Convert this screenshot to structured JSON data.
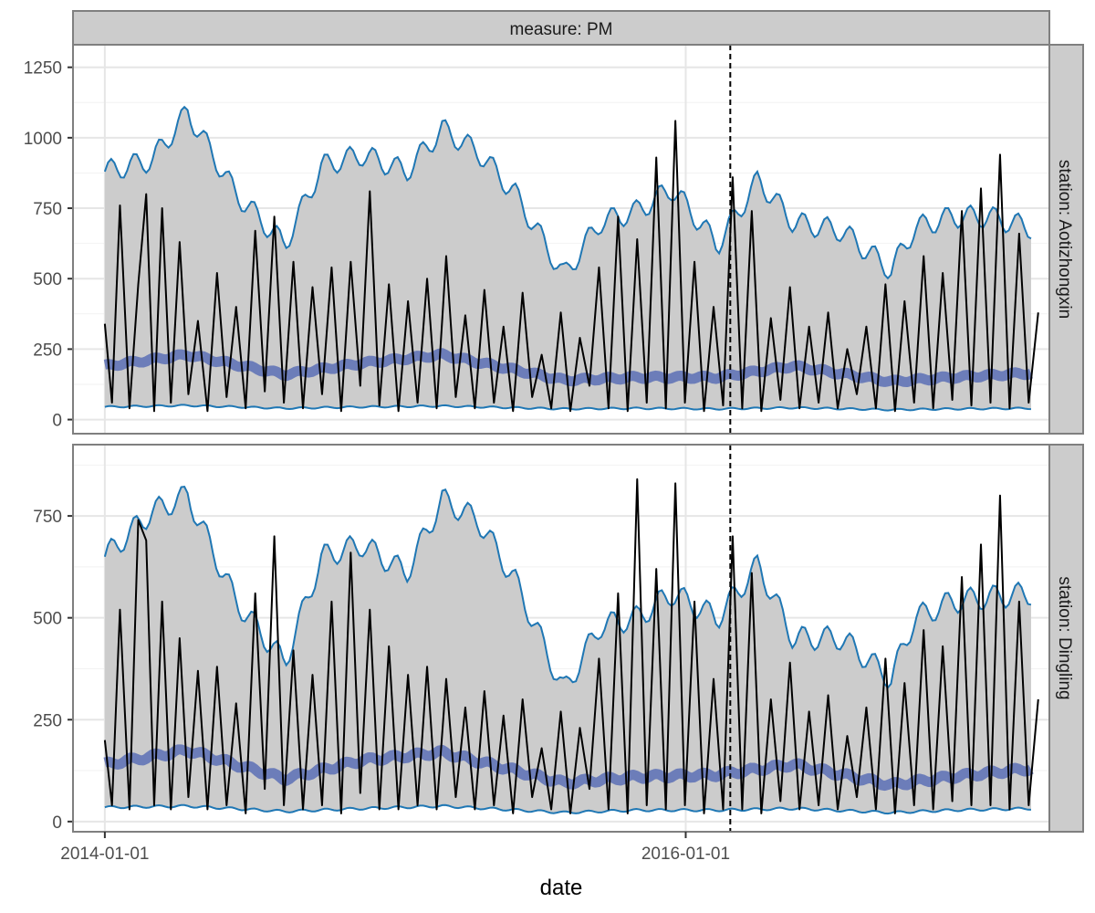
{
  "chart_data": {
    "type": "line",
    "xlabel": "date",
    "column_strip": "measure: PM",
    "x_ticks": [
      "2014-01-01",
      "2016-01-01"
    ],
    "xlim": [
      "2013-11-22",
      "2017-04-02"
    ],
    "changepoint_date": "2016-02-26",
    "colors": {
      "observed": "#000000",
      "bound": "#1f77b4",
      "median": "#5b6fb5",
      "band": "#cccccc",
      "strip": "#cccccc",
      "frame": "#7f7f7f",
      "grid": "#e6e6e6"
    },
    "panels": [
      {
        "strip": "station: Aotizhongxin",
        "ylim": [
          -50,
          1330
        ],
        "y_ticks": [
          0,
          250,
          500,
          750,
          1000,
          1250
        ],
        "series": [
          {
            "kind": "upper",
            "x": [
              "2014-01-01",
              "2014-03-01",
              "2014-04-15",
              "2014-06-15",
              "2014-08-15",
              "2014-10-01",
              "2014-11-20",
              "2015-01-15",
              "2015-03-01",
              "2015-04-15",
              "2015-06-01",
              "2015-08-01",
              "2015-09-15",
              "2015-11-01",
              "2015-12-15",
              "2016-02-10",
              "2016-04-01",
              "2016-05-15",
              "2016-07-15",
              "2016-09-15",
              "2016-10-15",
              "2016-12-01",
              "2017-01-15",
              "2017-03-10"
            ],
            "values": [
              880,
              920,
              1090,
              800,
              620,
              900,
              940,
              880,
              1030,
              950,
              800,
              510,
              700,
              740,
              820,
              620,
              850,
              700,
              670,
              530,
              680,
              720,
              720,
              680
            ]
          },
          {
            "kind": "lower",
            "x": [
              "2014-01-01",
              "2014-04-15",
              "2014-08-15",
              "2014-11-20",
              "2015-03-01",
              "2015-08-01",
              "2015-11-01",
              "2016-02-10",
              "2016-05-15",
              "2016-09-15",
              "2016-12-01",
              "2017-03-10"
            ],
            "values": [
              45,
              50,
              40,
              45,
              48,
              38,
              40,
              38,
              42,
              35,
              38,
              40
            ]
          },
          {
            "kind": "median",
            "x": [
              "2014-01-01",
              "2014-04-15",
              "2014-08-15",
              "2014-11-20",
              "2015-03-01",
              "2015-08-01",
              "2015-11-01",
              "2016-02-10",
              "2016-05-15",
              "2016-09-15",
              "2016-12-01",
              "2017-03-10"
            ],
            "values": [
              190,
              230,
              160,
              200,
              230,
              140,
              150,
              150,
              190,
              135,
              150,
              165
            ]
          },
          {
            "kind": "observed",
            "x": [
              "2014-01-01",
              "2014-01-10",
              "2014-01-20",
              "2014-02-01",
              "2014-02-12",
              "2014-02-22",
              "2014-03-04",
              "2014-03-14",
              "2014-03-25",
              "2014-04-05",
              "2014-04-16",
              "2014-04-28",
              "2014-05-10",
              "2014-05-22",
              "2014-06-03",
              "2014-06-15",
              "2014-06-27",
              "2014-07-09",
              "2014-07-21",
              "2014-08-02",
              "2014-08-14",
              "2014-08-26",
              "2014-09-07",
              "2014-09-19",
              "2014-10-01",
              "2014-10-13",
              "2014-10-25",
              "2014-11-06",
              "2014-11-18",
              "2014-11-30",
              "2014-12-12",
              "2014-12-24",
              "2015-01-05",
              "2015-01-17",
              "2015-01-29",
              "2015-02-10",
              "2015-02-22",
              "2015-03-06",
              "2015-03-18",
              "2015-03-30",
              "2015-04-11",
              "2015-04-23",
              "2015-05-05",
              "2015-05-17",
              "2015-05-29",
              "2015-06-10",
              "2015-06-22",
              "2015-07-04",
              "2015-07-16",
              "2015-07-28",
              "2015-08-09",
              "2015-08-21",
              "2015-09-02",
              "2015-09-14",
              "2015-09-26",
              "2015-10-08",
              "2015-10-20",
              "2015-11-01",
              "2015-11-13",
              "2015-11-25",
              "2015-12-07",
              "2015-12-19",
              "2015-12-31",
              "2016-01-12",
              "2016-01-24",
              "2016-02-05",
              "2016-02-17",
              "2016-02-29",
              "2016-03-12",
              "2016-03-24",
              "2016-04-05",
              "2016-04-17",
              "2016-04-29",
              "2016-05-11",
              "2016-05-23",
              "2016-06-04",
              "2016-06-16",
              "2016-06-28",
              "2016-07-10",
              "2016-07-22",
              "2016-08-03",
              "2016-08-15",
              "2016-08-27",
              "2016-09-08",
              "2016-09-20",
              "2016-10-02",
              "2016-10-14",
              "2016-10-26",
              "2016-11-07",
              "2016-11-19",
              "2016-12-01",
              "2016-12-13",
              "2016-12-25",
              "2017-01-06",
              "2017-01-18",
              "2017-01-30",
              "2017-02-11",
              "2017-02-23",
              "2017-03-07",
              "2017-03-19"
            ],
            "values": [
              340,
              60,
              760,
              40,
              480,
              800,
              30,
              750,
              60,
              630,
              90,
              350,
              30,
              520,
              80,
              400,
              40,
              670,
              100,
              720,
              60,
              560,
              40,
              470,
              90,
              540,
              30,
              560,
              120,
              810,
              50,
              480,
              30,
              420,
              60,
              500,
              40,
              580,
              80,
              370,
              40,
              460,
              60,
              330,
              30,
              450,
              80,
              230,
              40,
              380,
              30,
              290,
              120,
              540,
              40,
              720,
              30,
              640,
              60,
              930,
              40,
              1060,
              60,
              560,
              30,
              400,
              50,
              860,
              40,
              740,
              30,
              360,
              70,
              470,
              40,
              330,
              60,
              380,
              40,
              250,
              90,
              330,
              40,
              480,
              30,
              420,
              60,
              580,
              40,
              520,
              70,
              740,
              50,
              820,
              60,
              940,
              40,
              660,
              60,
              380
            ]
          }
        ]
      },
      {
        "strip": "station: Dingling",
        "ylim": [
          -25,
          925
        ],
        "y_ticks": [
          0,
          250,
          500,
          750
        ],
        "series": [
          {
            "kind": "upper",
            "x": [
              "2014-01-01",
              "2014-03-01",
              "2014-04-15",
              "2014-06-15",
              "2014-08-15",
              "2014-10-01",
              "2014-11-20",
              "2015-01-15",
              "2015-03-01",
              "2015-04-15",
              "2015-06-01",
              "2015-08-01",
              "2015-09-15",
              "2015-11-01",
              "2015-12-15",
              "2016-02-10",
              "2016-04-01",
              "2016-05-15",
              "2016-07-15",
              "2016-09-15",
              "2016-10-15",
              "2016-12-01",
              "2017-01-15",
              "2017-03-10"
            ],
            "values": [
              650,
              760,
              800,
              540,
              390,
              650,
              680,
              610,
              790,
              740,
              590,
              320,
              480,
              500,
              560,
              500,
              630,
              450,
              450,
              350,
              500,
              540,
              550,
              560
            ]
          },
          {
            "kind": "lower",
            "x": [
              "2014-01-01",
              "2014-04-15",
              "2014-08-15",
              "2014-11-20",
              "2015-03-01",
              "2015-08-01",
              "2015-11-01",
              "2016-02-10",
              "2016-05-15",
              "2016-09-15",
              "2016-12-01",
              "2017-03-10"
            ],
            "values": [
              35,
              38,
              25,
              32,
              38,
              22,
              28,
              28,
              32,
              22,
              28,
              32
            ]
          },
          {
            "kind": "median",
            "x": [
              "2014-01-01",
              "2014-04-15",
              "2014-08-15",
              "2014-11-20",
              "2015-03-01",
              "2015-08-01",
              "2015-11-01",
              "2016-02-10",
              "2016-05-15",
              "2016-09-15",
              "2016-12-01",
              "2017-03-10"
            ],
            "values": [
              140,
              175,
              105,
              150,
              170,
              95,
              110,
              115,
              140,
              90,
              110,
              130
            ]
          },
          {
            "kind": "observed",
            "x": [
              "2014-01-01",
              "2014-01-10",
              "2014-01-20",
              "2014-02-01",
              "2014-02-12",
              "2014-02-22",
              "2014-03-04",
              "2014-03-14",
              "2014-03-25",
              "2014-04-05",
              "2014-04-16",
              "2014-04-28",
              "2014-05-10",
              "2014-05-22",
              "2014-06-03",
              "2014-06-15",
              "2014-06-27",
              "2014-07-09",
              "2014-07-21",
              "2014-08-02",
              "2014-08-14",
              "2014-08-26",
              "2014-09-07",
              "2014-09-19",
              "2014-10-01",
              "2014-10-13",
              "2014-10-25",
              "2014-11-06",
              "2014-11-18",
              "2014-11-30",
              "2014-12-12",
              "2014-12-24",
              "2015-01-05",
              "2015-01-17",
              "2015-01-29",
              "2015-02-10",
              "2015-02-22",
              "2015-03-06",
              "2015-03-18",
              "2015-03-30",
              "2015-04-11",
              "2015-04-23",
              "2015-05-05",
              "2015-05-17",
              "2015-05-29",
              "2015-06-10",
              "2015-06-22",
              "2015-07-04",
              "2015-07-16",
              "2015-07-28",
              "2015-08-09",
              "2015-08-21",
              "2015-09-02",
              "2015-09-14",
              "2015-09-26",
              "2015-10-08",
              "2015-10-20",
              "2015-11-01",
              "2015-11-13",
              "2015-11-25",
              "2015-12-07",
              "2015-12-19",
              "2015-12-31",
              "2016-01-12",
              "2016-01-24",
              "2016-02-05",
              "2016-02-17",
              "2016-02-29",
              "2016-03-12",
              "2016-03-24",
              "2016-04-05",
              "2016-04-17",
              "2016-04-29",
              "2016-05-11",
              "2016-05-23",
              "2016-06-04",
              "2016-06-16",
              "2016-06-28",
              "2016-07-10",
              "2016-07-22",
              "2016-08-03",
              "2016-08-15",
              "2016-08-27",
              "2016-09-08",
              "2016-09-20",
              "2016-10-02",
              "2016-10-14",
              "2016-10-26",
              "2016-11-07",
              "2016-11-19",
              "2016-12-01",
              "2016-12-13",
              "2016-12-25",
              "2017-01-06",
              "2017-01-18",
              "2017-01-30",
              "2017-02-11",
              "2017-02-23",
              "2017-03-07",
              "2017-03-19"
            ],
            "values": [
              200,
              40,
              520,
              30,
              740,
              690,
              40,
              540,
              30,
              450,
              60,
              370,
              30,
              380,
              40,
              290,
              20,
              560,
              80,
              700,
              40,
              420,
              30,
              360,
              40,
              540,
              20,
              660,
              70,
              520,
              30,
              430,
              30,
              360,
              40,
              380,
              30,
              350,
              60,
              280,
              30,
              320,
              40,
              260,
              20,
              300,
              60,
              180,
              30,
              270,
              20,
              230,
              80,
              400,
              30,
              560,
              20,
              840,
              40,
              620,
              30,
              830,
              40,
              540,
              20,
              350,
              30,
              700,
              30,
              610,
              20,
              300,
              50,
              390,
              30,
              270,
              40,
              310,
              30,
              210,
              60,
              280,
              30,
              400,
              20,
              340,
              40,
              470,
              30,
              430,
              50,
              600,
              40,
              680,
              40,
              800,
              30,
              540,
              40,
              300
            ]
          }
        ]
      }
    ]
  }
}
